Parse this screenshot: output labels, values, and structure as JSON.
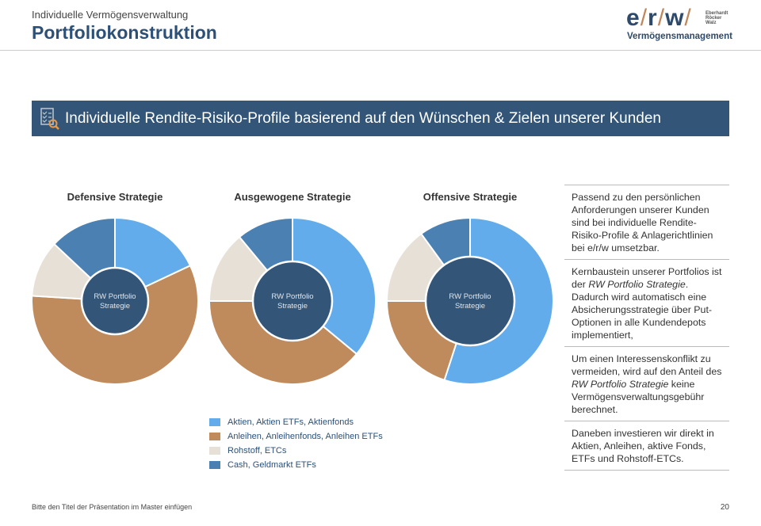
{
  "header": {
    "subtitle": "Individuelle Vermögensverwaltung",
    "title": "Portfoliokonstruktion"
  },
  "logo": {
    "mark": "e/r/w",
    "names": "Eberhardt Röcker Walz",
    "tagline": "Vermögensmanagement"
  },
  "banner": {
    "icon": "checklist-search-icon",
    "text": "Individuelle Rendite-Risiko-Profile basierend auf den Wünschen & Zielen unserer Kunden"
  },
  "chart_data": [
    {
      "type": "pie",
      "title": "Defensive Strategie",
      "center_label": "RW Portfolio Strategie",
      "categories": [
        "Aktien, Aktien ETFs, Aktienfonds",
        "Anleihen, Anleihenfonds, Anleihen ETFs",
        "Rohstoff, ETCs",
        "Cash, Geldmarkt ETFs"
      ],
      "values": [
        18,
        58,
        11,
        13
      ]
    },
    {
      "type": "pie",
      "title": "Ausgewogene Strategie",
      "center_label": "RW Portfolio Strategie",
      "categories": [
        "Aktien, Aktien ETFs, Aktienfonds",
        "Anleihen, Anleihenfonds, Anleihen ETFs",
        "Rohstoff, ETCs",
        "Cash, Geldmarkt ETFs"
      ],
      "values": [
        36,
        39,
        14,
        11
      ]
    },
    {
      "type": "pie",
      "title": "Offensive Strategie",
      "center_label": "RW Portfolio Strategie",
      "categories": [
        "Aktien, Aktien ETFs, Aktienfonds",
        "Anleihen, Anleihenfonds, Anleihen ETFs",
        "Rohstoff, ETCs",
        "Cash, Geldmarkt ETFs"
      ],
      "values": [
        55,
        20,
        15,
        10
      ]
    }
  ],
  "colors": {
    "aktien": "#63aceb",
    "anleihen": "#bf8a5c",
    "rohstoff": "#e7e0d6",
    "cash": "#4a80b2",
    "center": "#325578"
  },
  "legend": [
    {
      "label": "Aktien, Aktien ETFs, Aktienfonds",
      "color": "#63aceb"
    },
    {
      "label": "Anleihen, Anleihenfonds, Anleihen ETFs",
      "color": "#bf8a5c"
    },
    {
      "label": "Rohstoff, ETCs",
      "color": "#e7e0d6"
    },
    {
      "label": "Cash, Geldmarkt ETFs",
      "color": "#4a80b2"
    }
  ],
  "paragraphs": [
    [
      "Passend zu den persönlichen Anforderungen unserer Kunden sind bei individuelle Rendite-Risiko-Profile & Anlagerichtlinien bei e/r/w umsetzbar."
    ],
    [
      "Kernbaustein unserer Portfolios ist der ",
      "RW Portfolio Strategie",
      ". Dadurch wird automatisch eine Absicherungsstrategie über Put-Optionen in alle Kundendepots implementiert,"
    ],
    [
      "Um einen Interessenskonflikt zu vermeiden, wird auf den Anteil des ",
      "RW Portfolio Strategie",
      " keine Vermögensverwaltungsgebühr berechnet."
    ],
    [
      "Daneben investieren wir direkt in Aktien, Anleihen, aktive Fonds, ETFs und Rohstoff-ETCs."
    ]
  ],
  "footer": {
    "text": "Bitte den Titel der Präsentation im Master einfügen",
    "page": "20"
  }
}
